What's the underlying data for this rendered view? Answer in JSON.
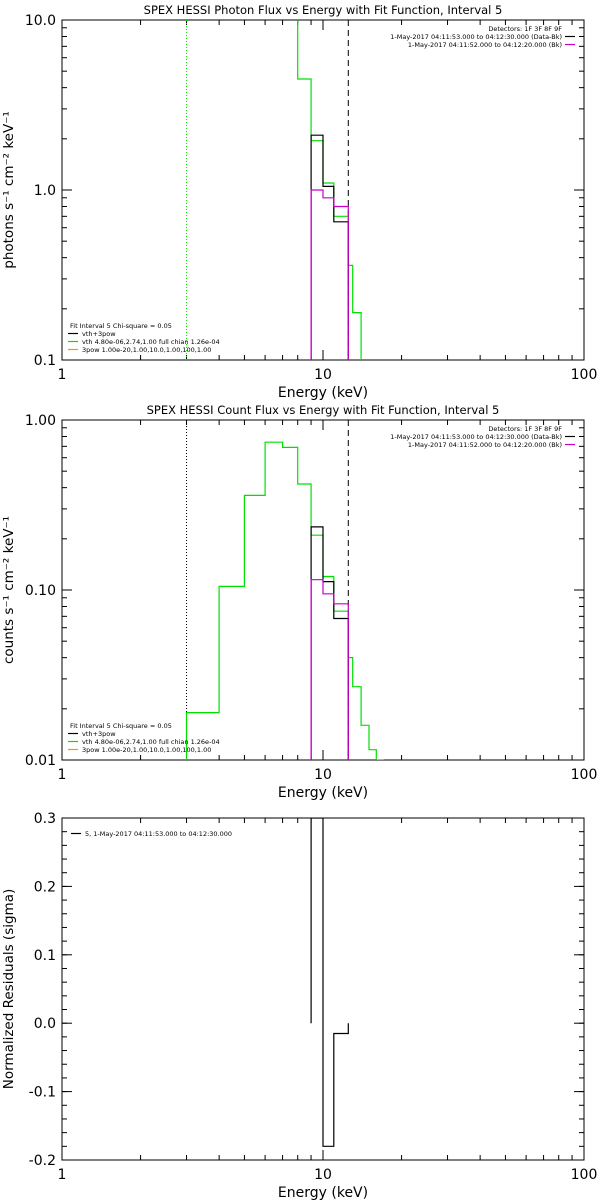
{
  "colors": {
    "black": "#000000",
    "green": "#00e000",
    "magenta": "#c800c8"
  },
  "chart_data": [
    {
      "type": "line",
      "title": "SPEX HESSI Photon Flux vs Energy with Fit Function, Interval 5",
      "xlabel": "Energy (keV)",
      "ylabel": "photons s⁻¹ cm⁻² keV⁻¹",
      "xscale": "log",
      "yscale": "log",
      "xlim": [
        1,
        100
      ],
      "ylim": [
        0.1,
        10
      ],
      "xticks": [
        1,
        10,
        100
      ],
      "xtick_labels": [
        "1",
        "10",
        "100"
      ],
      "yticks": [
        0.1,
        1,
        10
      ],
      "ytick_labels": [
        "0.1",
        "1.0",
        "10.0"
      ],
      "grid": false,
      "legend_top_right": [
        "Detectors: 1F 3F 8F 9F",
        "1-May-2017 04:11:53.000 to 04:12:30.000 (Data-Bk)",
        "1-May-2017 04:11:52.000 to 04:12:20.000 (Bk)"
      ],
      "legend_bottom_left": [
        "Fit Interval 5   Chi-square = 0.05",
        "vth+3pow",
        "vth 4.80e-06,2.74,1.00  full chian 1.26e-04",
        "3pow 1.00e-20,1.00,10.0,1.00,100,1.00"
      ],
      "vlines": [
        {
          "x": 3.0,
          "style": "dotted",
          "color": "green"
        },
        {
          "x": 12.5,
          "style": "dashed",
          "color": "black"
        }
      ],
      "series": [
        {
          "name": "vth+3pow",
          "color": "green",
          "style": "step",
          "edges": [
            8,
            9,
            10,
            11,
            12.5,
            13,
            14,
            15
          ],
          "values": [
            4.5,
            1.95,
            1.1,
            0.7,
            0.36,
            0.19,
            0.09
          ],
          "start": {
            "x": 8,
            "y": 30
          }
        },
        {
          "name": "1-May-2017 04:11:53.000 to 04:12:30.000 (Data-Bk)",
          "color": "black",
          "style": "step",
          "edges": [
            9,
            10,
            11,
            12.5
          ],
          "values": [
            2.1,
            1.05,
            0.65
          ]
        },
        {
          "name": "1-May-2017 04:11:52.000 to 04:12:20.000 (Bk)",
          "color": "magenta",
          "style": "step",
          "edges": [
            9,
            10,
            11,
            12.5
          ],
          "values": [
            1.0,
            0.9,
            0.8
          ]
        }
      ]
    },
    {
      "type": "line",
      "title": "SPEX HESSI Count Flux vs Energy with Fit Function, Interval 5",
      "xlabel": "Energy (keV)",
      "ylabel": "counts s⁻¹ cm⁻² keV⁻¹",
      "xscale": "log",
      "yscale": "log",
      "xlim": [
        1,
        100
      ],
      "ylim": [
        0.01,
        1
      ],
      "xticks": [
        1,
        10,
        100
      ],
      "xtick_labels": [
        "1",
        "10",
        "100"
      ],
      "yticks": [
        0.01,
        0.1,
        1
      ],
      "ytick_labels": [
        "0.01",
        "0.10",
        "1.00"
      ],
      "grid": false,
      "legend_top_right": [
        "Detectors: 1F 3F 8F 9F",
        "1-May-2017 04:11:53.000 to 04:12:30.000 (Data-Bk)",
        "1-May-2017 04:11:52.000 to 04:12:20.000 (Bk)"
      ],
      "legend_bottom_left": [
        "Fit Interval 5   Chi-square = 0.05",
        "vth+3pow",
        "vth 4.80e-06,2.74,1.00  full chian 1.26e-04",
        "3pow 1.00e-20,1.00,10.0,1.00,100,1.00"
      ],
      "vlines": [
        {
          "x": 3.0,
          "style": "dotted",
          "color": "black"
        },
        {
          "x": 12.5,
          "style": "dashed",
          "color": "black"
        }
      ],
      "series": [
        {
          "name": "vth+3pow",
          "color": "green",
          "style": "step",
          "edges": [
            3,
            4,
            5,
            6,
            7,
            8,
            9,
            10,
            11,
            12.5,
            13,
            14,
            15,
            16,
            17
          ],
          "values": [
            0.019,
            0.105,
            0.36,
            0.74,
            0.69,
            0.42,
            0.21,
            0.12,
            0.075,
            0.04,
            0.027,
            0.016,
            0.0115,
            0.01
          ],
          "start": {
            "x": 3,
            "y": 0.01
          }
        },
        {
          "name": "1-May-2017 04:11:53.000 to 04:12:30.000 (Data-Bk)",
          "color": "black",
          "style": "step",
          "edges": [
            9,
            10,
            11,
            12.5
          ],
          "values": [
            0.235,
            0.112,
            0.068
          ]
        },
        {
          "name": "1-May-2017 04:11:52.000 to 04:12:20.000 (Bk)",
          "color": "magenta",
          "style": "step",
          "edges": [
            9,
            10,
            11,
            12.5
          ],
          "values": [
            0.115,
            0.095,
            0.083
          ]
        }
      ]
    },
    {
      "type": "bar",
      "title": "",
      "xlabel": "Energy (keV)",
      "ylabel": "Normalized Residuals (sigma)",
      "xscale": "log",
      "yscale": "linear",
      "xlim": [
        1,
        100
      ],
      "ylim": [
        -0.2,
        0.3
      ],
      "xticks": [
        1,
        10,
        100
      ],
      "xtick_labels": [
        "1",
        "10",
        "100"
      ],
      "yticks": [
        -0.2,
        -0.1,
        0.0,
        0.1,
        0.2,
        0.3
      ],
      "ytick_labels": [
        "-0.2",
        "-0.1",
        "0.0",
        "0.1",
        "0.2",
        "0.3"
      ],
      "grid": false,
      "legend": [
        "5, 1-May-2017 04:11:53.000 to 04:12:30.000"
      ],
      "series": [
        {
          "name": "5, 1-May-2017 04:11:53.000 to 04:12:30.000",
          "color": "black",
          "style": "step",
          "edges": [
            9,
            10,
            11,
            12.5
          ],
          "values": [
            0.3,
            -0.18,
            -0.015
          ]
        }
      ]
    }
  ]
}
